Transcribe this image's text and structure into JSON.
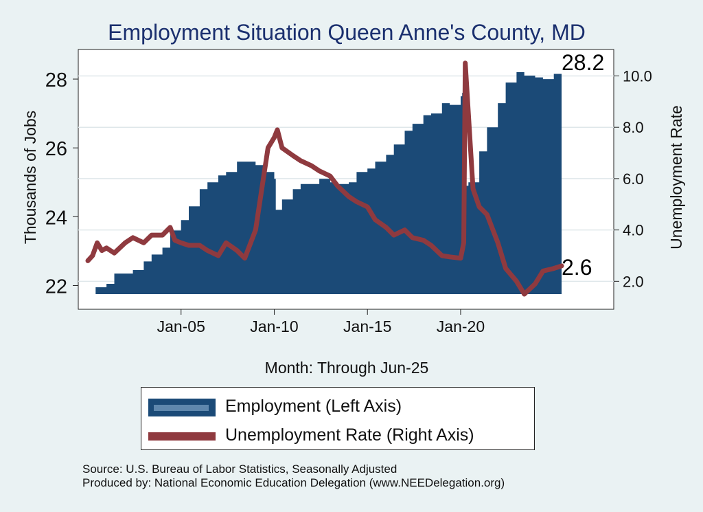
{
  "chart_data": {
    "type": "area+line",
    "title": "Employment Situation Queen Anne's  County, MD",
    "xlabel": "Month: Through Jun-25",
    "ylabel_left": "Thousands of Jobs",
    "ylabel_right": "Unemployment Rate",
    "x_range": [
      "2000-01",
      "2025-06"
    ],
    "x_ticks": [
      {
        "date": "2005-01",
        "label": "Jan-05"
      },
      {
        "date": "2010-01",
        "label": "Jan-10"
      },
      {
        "date": "2015-01",
        "label": "Jan-15"
      },
      {
        "date": "2020-01",
        "label": "Jan-20"
      }
    ],
    "ylim_left": [
      21.75,
      28.8
    ],
    "yticks_left": [
      22,
      24,
      26,
      28
    ],
    "ylim_right": [
      1.5,
      10.95
    ],
    "yticks_right": [
      {
        "value": 2.0,
        "label": "2.0"
      },
      {
        "value": 4.0,
        "label": "4.0"
      },
      {
        "value": 6.0,
        "label": "6.0"
      },
      {
        "value": 8.0,
        "label": "8.0"
      },
      {
        "value": 10.0,
        "label": "10.0"
      }
    ],
    "grid": true,
    "series": [
      {
        "name": "Employment (Left Axis)",
        "axis": "left",
        "type": "area",
        "color": "#1b4a77",
        "end_label": "28.2",
        "points": [
          [
            "2000-01",
            21.75
          ],
          [
            "2000-06",
            21.95
          ],
          [
            "2001-01",
            22.05
          ],
          [
            "2001-06",
            22.35
          ],
          [
            "2002-01",
            22.35
          ],
          [
            "2002-06",
            22.45
          ],
          [
            "2003-01",
            22.7
          ],
          [
            "2003-06",
            22.9
          ],
          [
            "2004-01",
            23.1
          ],
          [
            "2004-06",
            23.6
          ],
          [
            "2005-01",
            23.9
          ],
          [
            "2005-06",
            24.3
          ],
          [
            "2006-01",
            24.8
          ],
          [
            "2006-06",
            25.0
          ],
          [
            "2007-01",
            25.2
          ],
          [
            "2007-06",
            25.3
          ],
          [
            "2008-01",
            25.6
          ],
          [
            "2008-06",
            25.6
          ],
          [
            "2009-01",
            25.5
          ],
          [
            "2009-06",
            25.3
          ],
          [
            "2010-01",
            25.1
          ],
          [
            "2010-02",
            24.2
          ],
          [
            "2010-06",
            24.5
          ],
          [
            "2011-01",
            24.8
          ],
          [
            "2011-06",
            24.95
          ],
          [
            "2012-01",
            24.95
          ],
          [
            "2012-06",
            25.1
          ],
          [
            "2013-01",
            25.0
          ],
          [
            "2013-06",
            24.95
          ],
          [
            "2014-01",
            25.0
          ],
          [
            "2014-06",
            25.3
          ],
          [
            "2015-01",
            25.4
          ],
          [
            "2015-06",
            25.6
          ],
          [
            "2016-01",
            25.8
          ],
          [
            "2016-06",
            26.1
          ],
          [
            "2017-01",
            26.5
          ],
          [
            "2017-06",
            26.7
          ],
          [
            "2018-01",
            26.95
          ],
          [
            "2018-06",
            27.0
          ],
          [
            "2019-01",
            27.3
          ],
          [
            "2019-06",
            27.25
          ],
          [
            "2020-01",
            27.5
          ],
          [
            "2020-02",
            27.6
          ],
          [
            "2020-04",
            24.9
          ],
          [
            "2020-06",
            25.0
          ],
          [
            "2021-01",
            25.9
          ],
          [
            "2021-06",
            26.6
          ],
          [
            "2022-01",
            27.3
          ],
          [
            "2022-06",
            27.9
          ],
          [
            "2023-01",
            28.2
          ],
          [
            "2023-06",
            28.1
          ],
          [
            "2024-01",
            28.05
          ],
          [
            "2024-06",
            28.0
          ],
          [
            "2025-01",
            28.15
          ],
          [
            "2025-06",
            28.2
          ]
        ]
      },
      {
        "name": "Unemployment Rate (Right Axis)",
        "axis": "right",
        "type": "line",
        "color": "#8f3a3f",
        "end_label": "2.6",
        "points": [
          [
            "2000-01",
            2.8
          ],
          [
            "2000-04",
            3.0
          ],
          [
            "2000-07",
            3.5
          ],
          [
            "2000-10",
            3.2
          ],
          [
            "2001-01",
            3.3
          ],
          [
            "2001-06",
            3.1
          ],
          [
            "2002-01",
            3.5
          ],
          [
            "2002-06",
            3.7
          ],
          [
            "2003-01",
            3.5
          ],
          [
            "2003-06",
            3.8
          ],
          [
            "2004-01",
            3.8
          ],
          [
            "2004-06",
            4.1
          ],
          [
            "2004-09",
            3.6
          ],
          [
            "2005-01",
            3.5
          ],
          [
            "2005-06",
            3.4
          ],
          [
            "2006-01",
            3.4
          ],
          [
            "2006-06",
            3.2
          ],
          [
            "2007-01",
            3.0
          ],
          [
            "2007-06",
            3.5
          ],
          [
            "2008-01",
            3.2
          ],
          [
            "2008-06",
            2.9
          ],
          [
            "2009-01",
            4.0
          ],
          [
            "2009-06",
            6.0
          ],
          [
            "2009-09",
            7.2
          ],
          [
            "2010-01",
            7.6
          ],
          [
            "2010-03",
            7.9
          ],
          [
            "2010-06",
            7.2
          ],
          [
            "2011-01",
            6.9
          ],
          [
            "2011-06",
            6.7
          ],
          [
            "2012-01",
            6.5
          ],
          [
            "2012-06",
            6.3
          ],
          [
            "2013-01",
            6.1
          ],
          [
            "2013-06",
            5.7
          ],
          [
            "2014-01",
            5.3
          ],
          [
            "2014-06",
            5.1
          ],
          [
            "2015-01",
            4.9
          ],
          [
            "2015-06",
            4.4
          ],
          [
            "2016-01",
            4.1
          ],
          [
            "2016-06",
            3.8
          ],
          [
            "2017-01",
            4.0
          ],
          [
            "2017-06",
            3.7
          ],
          [
            "2018-01",
            3.6
          ],
          [
            "2018-06",
            3.4
          ],
          [
            "2019-01",
            3.0
          ],
          [
            "2019-06",
            2.95
          ],
          [
            "2020-01",
            2.9
          ],
          [
            "2020-03",
            3.5
          ],
          [
            "2020-04",
            10.5
          ],
          [
            "2020-06",
            8.5
          ],
          [
            "2020-09",
            5.6
          ],
          [
            "2021-01",
            4.9
          ],
          [
            "2021-06",
            4.6
          ],
          [
            "2022-01",
            3.5
          ],
          [
            "2022-06",
            2.5
          ],
          [
            "2023-01",
            2.0
          ],
          [
            "2023-06",
            1.5
          ],
          [
            "2024-01",
            1.9
          ],
          [
            "2024-06",
            2.4
          ],
          [
            "2025-01",
            2.5
          ],
          [
            "2025-06",
            2.6
          ]
        ]
      }
    ]
  },
  "source": {
    "line1": "Source: U.S. Bureau of Labor Statistics, Seasonally Adjusted",
    "line2": "Produced by: National Economic Education Delegation (www.NEEDelegation.org)"
  }
}
